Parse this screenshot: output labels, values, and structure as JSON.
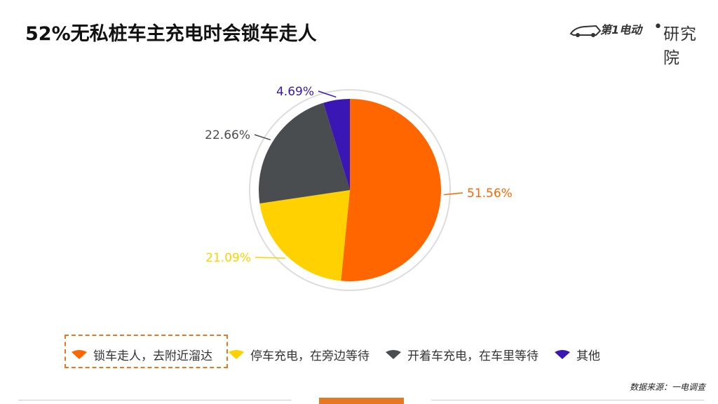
{
  "title": "52%无私桩车主充电时会锁车走人",
  "brand": {
    "logo_text": "第1电动",
    "separator": "•",
    "institute": "研究院",
    "colors": {
      "brand_dark": "#333333"
    }
  },
  "chart_data": {
    "type": "pie",
    "title": "52%无私桩车主充电时会锁车走人",
    "legend_position": "bottom",
    "slices": [
      {
        "label": "锁车走人，去附近溜达",
        "value": 51.56,
        "value_label": "51.56%",
        "color": "#FF6600",
        "highlighted": true
      },
      {
        "label": "停车充电，在旁边等待",
        "value": 21.09,
        "value_label": "21.09%",
        "color": "#FFD100"
      },
      {
        "label": "开着车充电，在车里等待",
        "value": 22.66,
        "value_label": "22.66%",
        "color": "#4A4D50"
      },
      {
        "label": "其他",
        "value": 4.69,
        "value_label": "4.69%",
        "color": "#3A16B5"
      }
    ]
  },
  "source": "数据来源：一电调查",
  "colors": {
    "accent": "#E87722",
    "ring": "#DDDDDD"
  }
}
